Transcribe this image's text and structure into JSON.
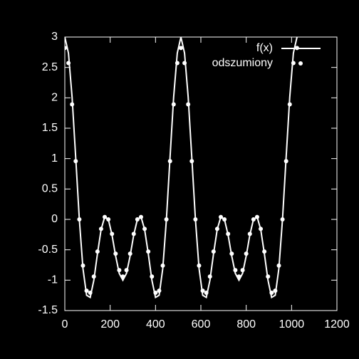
{
  "chart_data": {
    "type": "line",
    "x": [
      0,
      16,
      32,
      48,
      64,
      80,
      96,
      112,
      128,
      144,
      160,
      176,
      192,
      208,
      224,
      240,
      256,
      272,
      288,
      304,
      320,
      336,
      352,
      368,
      384,
      400,
      416,
      432,
      448,
      464,
      480,
      496,
      512,
      528,
      544,
      560,
      576,
      592,
      608,
      624,
      640,
      656,
      672,
      688,
      704,
      720,
      736,
      752,
      768,
      784,
      800,
      816,
      832,
      848,
      864,
      880,
      896,
      912,
      928,
      944,
      960,
      976,
      992,
      1008,
      1024
    ],
    "series": [
      {
        "name": "f(x)",
        "style": "lines",
        "color": "#ffffff",
        "values": [
          3,
          2.736,
          2.014,
          1.019,
          0,
          -0.808,
          -1.248,
          -1.284,
          -1,
          -0.563,
          -0.166,
          0.042,
          0,
          -0.254,
          -0.6,
          -0.888,
          -1,
          -0.888,
          -0.6,
          -0.254,
          0,
          0.042,
          -0.166,
          -0.563,
          -1,
          -1.284,
          -1.248,
          -0.808,
          0,
          1.019,
          2.014,
          2.736,
          3,
          2.736,
          2.014,
          1.019,
          0,
          -0.808,
          -1.248,
          -1.284,
          -1,
          -0.563,
          -0.166,
          0.042,
          0,
          -0.254,
          -0.6,
          -0.888,
          -1,
          -0.888,
          -0.6,
          -0.254,
          0,
          0.042,
          -0.166,
          -0.563,
          -1,
          -1.284,
          -1.248,
          -0.808,
          0,
          1.019,
          2.014,
          2.736,
          3
        ]
      },
      {
        "name": "odszumiony",
        "style": "points",
        "color": "#ffffff",
        "values": [
          2.82,
          2.572,
          1.893,
          0.958,
          0,
          -0.76,
          -1.173,
          -1.207,
          -0.94,
          -0.529,
          -0.156,
          0.039,
          0,
          -0.239,
          -0.564,
          -0.835,
          -0.94,
          -0.835,
          -0.564,
          -0.239,
          0,
          0.039,
          -0.156,
          -0.529,
          -0.94,
          -1.207,
          -1.173,
          -0.76,
          0,
          0.958,
          1.893,
          2.572,
          2.82,
          2.572,
          1.893,
          0.958,
          0,
          -0.76,
          -1.173,
          -1.207,
          -0.94,
          -0.529,
          -0.156,
          0.039,
          0,
          -0.239,
          -0.564,
          -0.835,
          -0.94,
          -0.835,
          -0.564,
          -0.239,
          0,
          0.039,
          -0.156,
          -0.529,
          -0.94,
          -1.207,
          -1.173,
          -0.76,
          0,
          0.958,
          1.893,
          2.572,
          2.82
        ]
      }
    ],
    "xlim": [
      0,
      1200
    ],
    "xticks": [
      0,
      200,
      400,
      600,
      800,
      1000,
      1200
    ],
    "ylim": [
      -1.5,
      3
    ],
    "yticks": [
      -1.5,
      -1,
      -0.5,
      0,
      0.5,
      1,
      1.5,
      2,
      2.5,
      3
    ],
    "legend": "top-right",
    "background": "#000000"
  }
}
